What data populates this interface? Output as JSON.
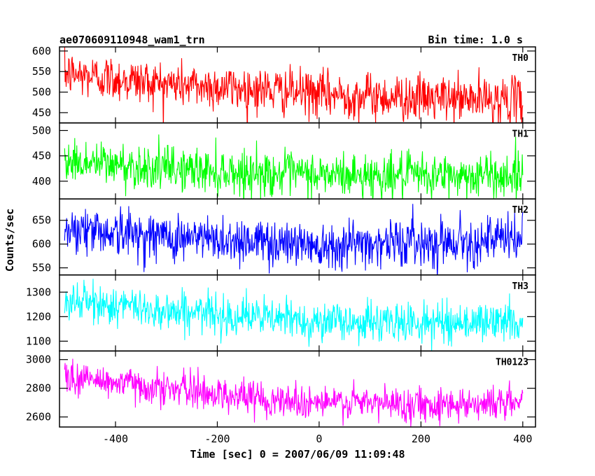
{
  "header": {
    "title": "ae070609110948_wam1_trn",
    "bin_time": "Bin time: 1.0 s"
  },
  "chart_data": {
    "type": "line",
    "xlabel": "Time [sec] 0 = 2007/06/09 11:09:48",
    "ylabel": "Counts/sec",
    "xlim": [
      -510,
      425
    ],
    "data_x_range": [
      -500,
      400
    ],
    "x_ticks": [
      -400,
      -200,
      0,
      200,
      400
    ],
    "grid": false,
    "panels": [
      {
        "name": "TH0",
        "color": "#ff0000",
        "ylim": [
          425,
          610
        ],
        "y_ticks": [
          450,
          500,
          550,
          600
        ],
        "trend": [
          [
            -500,
            545
          ],
          [
            -300,
            520
          ],
          [
            -100,
            505
          ],
          [
            0,
            495
          ],
          [
            200,
            485
          ],
          [
            400,
            480
          ]
        ],
        "noise_sd": 28
      },
      {
        "name": "TH1",
        "color": "#00ff00",
        "ylim": [
          365,
          515
        ],
        "y_ticks": [
          400,
          450,
          500
        ],
        "trend": [
          [
            -500,
            440
          ],
          [
            -300,
            425
          ],
          [
            -100,
            415
          ],
          [
            0,
            412
          ],
          [
            200,
            410
          ],
          [
            400,
            412
          ]
        ],
        "noise_sd": 22
      },
      {
        "name": "TH2",
        "color": "#0000ff",
        "ylim": [
          535,
          695
        ],
        "y_ticks": [
          550,
          600,
          650
        ],
        "trend": [
          [
            -500,
            635
          ],
          [
            -300,
            615
          ],
          [
            -100,
            605
          ],
          [
            0,
            600
          ],
          [
            200,
            605
          ],
          [
            400,
            610
          ]
        ],
        "noise_sd": 25
      },
      {
        "name": "TH3",
        "color": "#00ffff",
        "ylim": [
          1060,
          1370
        ],
        "y_ticks": [
          1100,
          1200,
          1300
        ],
        "trend": [
          [
            -500,
            1265
          ],
          [
            -300,
            1225
          ],
          [
            -100,
            1195
          ],
          [
            0,
            1180
          ],
          [
            200,
            1175
          ],
          [
            400,
            1180
          ]
        ],
        "noise_sd": 40
      },
      {
        "name": "TH0123",
        "color": "#ff00ff",
        "ylim": [
          2530,
          3060
        ],
        "y_ticks": [
          2600,
          2800,
          3000
        ],
        "trend": [
          [
            -500,
            2880
          ],
          [
            -300,
            2800
          ],
          [
            -100,
            2725
          ],
          [
            0,
            2700
          ],
          [
            200,
            2690
          ],
          [
            400,
            2700
          ]
        ],
        "noise_sd": 60
      }
    ]
  }
}
